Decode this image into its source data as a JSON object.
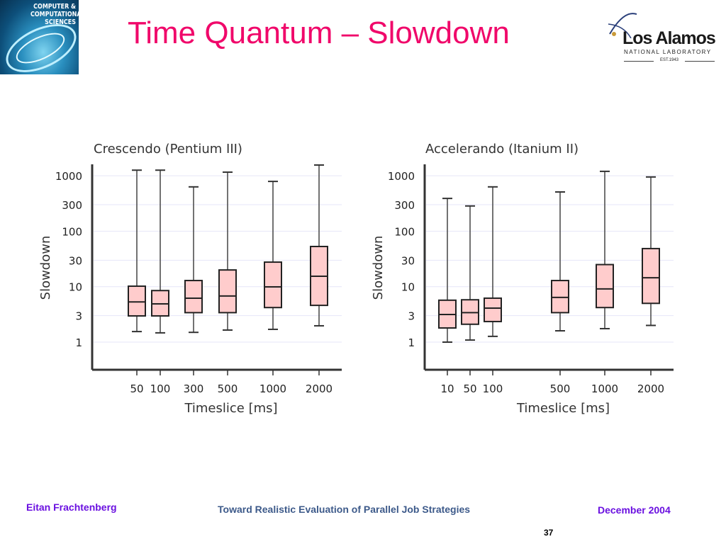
{
  "slide": {
    "title": "Time Quantum – Slowdown",
    "logo_left": "COMPUTER & COMPUTATIONAL SCIENCES",
    "logo_right": {
      "name": "Los Alamos",
      "sub": "NATIONAL LABORATORY",
      "est": "EST.1943"
    },
    "footer": {
      "author": "Eitan Frachtenberg",
      "talk": "Toward Realistic Evaluation of Parallel Job Strategies",
      "date": "December 2004",
      "page": "37"
    },
    "colors": {
      "title": "#f0086a",
      "footer_side": "#6a10e0",
      "footer_center": "#3d5a8a",
      "box_fill": "#ffcccc",
      "grid": "#e6e6f8"
    }
  },
  "chart_data": [
    {
      "type": "box",
      "title": "Crescendo (Pentium III)",
      "xlabel": "Timeslice [ms]",
      "ylabel": "Slowdown",
      "yscale": "log",
      "yticks": [
        "1",
        "3",
        "10",
        "30",
        "100",
        "300",
        "1000"
      ],
      "ylim": [
        0.33,
        2000
      ],
      "grid": true,
      "categories": [
        "50",
        "100",
        "300",
        "500",
        "1000",
        "2000"
      ],
      "boxes": [
        {
          "min": 1.55,
          "q1": 2.97,
          "median": 5.3,
          "q3": 10.2,
          "max": 1260
        },
        {
          "min": 1.47,
          "q1": 2.97,
          "median": 4.9,
          "q3": 8.5,
          "max": 1260
        },
        {
          "min": 1.5,
          "q1": 3.4,
          "median": 6.2,
          "q3": 12.9,
          "max": 630
        },
        {
          "min": 1.65,
          "q1": 3.4,
          "median": 6.8,
          "q3": 20,
          "max": 1160
        },
        {
          "min": 1.7,
          "q1": 4.2,
          "median": 9.9,
          "q3": 27.7,
          "max": 790
        },
        {
          "min": 1.97,
          "q1": 4.6,
          "median": 15.4,
          "q3": 53,
          "max": 1560
        }
      ]
    },
    {
      "type": "box",
      "title": "Accelerando (Itanium II)",
      "xlabel": "Timeslice [ms]",
      "ylabel": "Slowdown",
      "yscale": "log",
      "yticks": [
        "1",
        "3",
        "10",
        "30",
        "100",
        "300",
        "1000"
      ],
      "ylim": [
        0.33,
        2000
      ],
      "grid": true,
      "categories": [
        "10",
        "50",
        "100",
        "500",
        "1000",
        "2000"
      ],
      "boxes": [
        {
          "min": 1.0,
          "q1": 1.8,
          "median": 3.15,
          "q3": 5.7,
          "max": 390
        },
        {
          "min": 1.09,
          "q1": 2.1,
          "median": 3.4,
          "q3": 5.8,
          "max": 285
        },
        {
          "min": 1.27,
          "q1": 2.35,
          "median": 4.1,
          "q3": 6.2,
          "max": 630
        },
        {
          "min": 1.6,
          "q1": 3.4,
          "median": 6.4,
          "q3": 12.9,
          "max": 510
        },
        {
          "min": 1.75,
          "q1": 4.2,
          "median": 9.1,
          "q3": 25,
          "max": 1200
        },
        {
          "min": 2.0,
          "q1": 5.0,
          "median": 14.5,
          "q3": 48.6,
          "max": 950
        }
      ]
    }
  ]
}
